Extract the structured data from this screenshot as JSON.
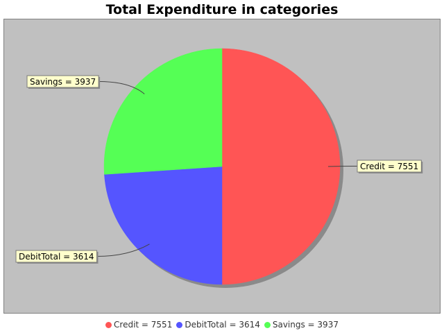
{
  "chart_data": {
    "type": "pie",
    "title": "Total Expenditure in categories",
    "slices": [
      {
        "name": "Credit",
        "value": 7551,
        "label": "Credit = 7551",
        "color": "#ff5555"
      },
      {
        "name": "DebitTotal",
        "value": 3614,
        "label": "DebitTotal = 3614",
        "color": "#5555ff"
      },
      {
        "name": "Savings",
        "value": 3937,
        "label": "Savings = 3937",
        "color": "#55ff55"
      }
    ],
    "legend_position": "bottom",
    "background_color": "#c0c0c0",
    "label_box_color": "#ffffcc"
  }
}
